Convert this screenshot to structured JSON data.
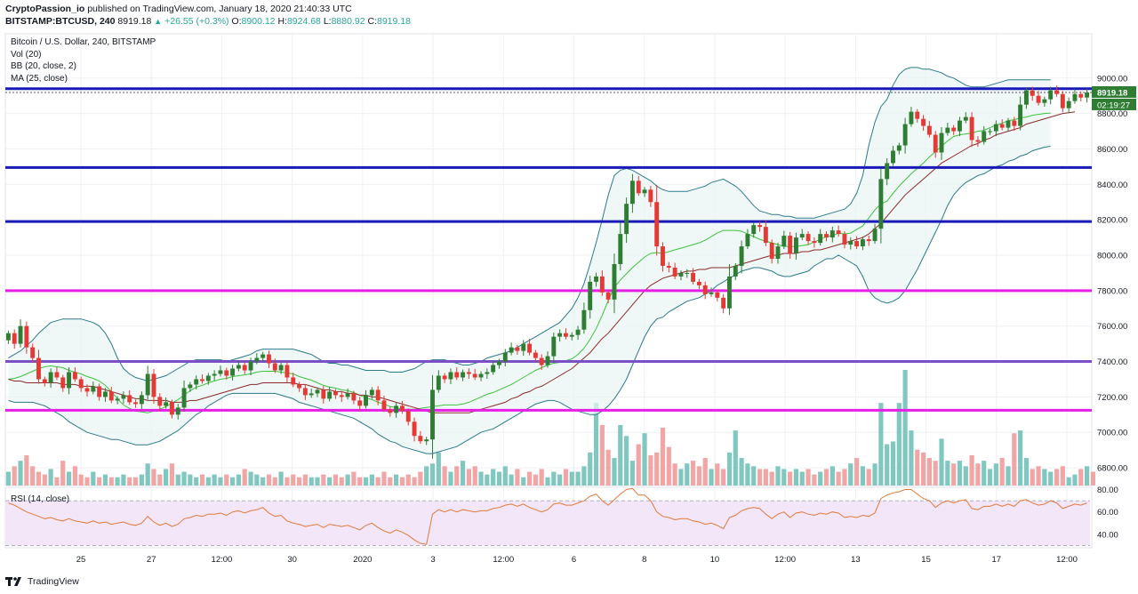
{
  "header": {
    "author": "CryptoPassion_io",
    "published_text": "published on TradingView.com, January 18, 2020 21:40:33 UTC",
    "symbol": "BITSTAMP:BTCUSD, 240",
    "last": "8919.18",
    "change": "+26.55 (+0.3%)",
    "O_label": "O:",
    "O": "8900.12",
    "H_label": "H:",
    "H": "8924.68",
    "L_label": "L:",
    "L": "8880.92",
    "C_label": "C:",
    "C": "8919.18"
  },
  "footer": {
    "brand": "TradingView"
  },
  "chart_data": {
    "type": "candlestick",
    "title": "Bitcoin / U.S. Dollar, 240, BITSTAMP",
    "indicators": [
      "Vol (20)",
      "BB (20, close, 2)",
      "MA (25, close)"
    ],
    "rsi_label": "RSI (14, close)",
    "price_axis": {
      "ylim": [
        6700,
        9250
      ],
      "ticks": [
        6800,
        7000,
        7200,
        7400,
        7600,
        7800,
        8000,
        8200,
        8400,
        8600,
        8800,
        9000
      ]
    },
    "rsi_axis": {
      "ylim": [
        28,
        82
      ],
      "ticks": [
        40,
        60,
        80
      ],
      "bands": [
        30,
        70
      ]
    },
    "x_tick_labels": [
      "25",
      "27",
      "12:00",
      "30",
      "2020",
      "3",
      "12:00",
      "6",
      "8",
      "10",
      "12:00",
      "13",
      "15",
      "17",
      "12:00"
    ],
    "last_price_label": "8919.18",
    "countdown_label": "02:19:27",
    "horizontal_levels": [
      {
        "price": 8940,
        "color": "#1a1ab8",
        "style": "solid"
      },
      {
        "price": 8919,
        "color": "#555555",
        "style": "dotted"
      },
      {
        "price": 8495,
        "color": "#1a1ab8",
        "style": "solid"
      },
      {
        "price": 8190,
        "color": "#1a1ab8",
        "style": "solid"
      },
      {
        "price": 7800,
        "color": "#e61ee6",
        "style": "solid"
      },
      {
        "price": 7400,
        "color": "#7a4fc7",
        "style": "solid"
      },
      {
        "price": 7125,
        "color": "#e61ee6",
        "style": "solid"
      }
    ],
    "colors": {
      "up": "#2e7d32",
      "down": "#e53935",
      "vol_up": "#80c7c0",
      "vol_down": "#f2a5a5",
      "bb": "#2b7a8a",
      "ma": "#8b2a2a",
      "basis": "#3cc33c",
      "rsi": "#e07a3a",
      "rsi_band": "#f3e6f9"
    },
    "closes": [
      7560,
      7500,
      7600,
      7480,
      7420,
      7300,
      7280,
      7340,
      7310,
      7250,
      7340,
      7300,
      7250,
      7230,
      7260,
      7200,
      7230,
      7180,
      7190,
      7210,
      7170,
      7160,
      7210,
      7330,
      7200,
      7150,
      7170,
      7100,
      7140,
      7250,
      7270,
      7300,
      7290,
      7320,
      7330,
      7350,
      7320,
      7360,
      7380,
      7350,
      7400,
      7420,
      7440,
      7390,
      7350,
      7380,
      7310,
      7270,
      7250,
      7210,
      7220,
      7240,
      7190,
      7230,
      7210,
      7200,
      7220,
      7180,
      7150,
      7210,
      7240,
      7180,
      7130,
      7110,
      7150,
      7120,
      7060,
      6980,
      6950,
      6960,
      7240,
      7320,
      7300,
      7340,
      7310,
      7340,
      7330,
      7310,
      7330,
      7340,
      7380,
      7400,
      7450,
      7480,
      7460,
      7500,
      7450,
      7420,
      7380,
      7430,
      7540,
      7560,
      7540,
      7550,
      7580,
      7690,
      7850,
      7880,
      7790,
      7750,
      7950,
      8120,
      8290,
      8420,
      8350,
      8370,
      8300,
      8050,
      7940,
      7930,
      7880,
      7900,
      7900,
      7850,
      7830,
      7780,
      7790,
      7760,
      7700,
      7880,
      7940,
      8050,
      8120,
      8170,
      8160,
      8070,
      7980,
      8050,
      8110,
      8010,
      8100,
      8120,
      8080,
      8070,
      8120,
      8100,
      8140,
      8120,
      8060,
      8080,
      8050,
      8090,
      8080,
      8150,
      8430,
      8520,
      8590,
      8620,
      8740,
      8810,
      8770,
      8730,
      8680,
      8580,
      8690,
      8720,
      8700,
      8760,
      8780,
      8650,
      8640,
      8700,
      8700,
      8740,
      8720,
      8760,
      8730,
      8850,
      8930,
      8900,
      8860,
      8880,
      8930,
      8910,
      8830,
      8870,
      8910,
      8890,
      8919
    ],
    "bb_upper": [
      7420,
      7440,
      7460,
      7490,
      7520,
      7560,
      7590,
      7620,
      7630,
      7640,
      7640,
      7640,
      7640,
      7630,
      7620,
      7600,
      7560,
      7500,
      7420,
      7360,
      7330,
      7310,
      7300,
      7290,
      7300,
      7310,
      7320,
      7340,
      7360,
      7380,
      7400,
      7410,
      7410,
      7410,
      7410,
      7410,
      7400,
      7410,
      7420,
      7430,
      7440,
      7460,
      7470,
      7470,
      7470,
      7470,
      7470,
      7470,
      7460,
      7450,
      7440,
      7420,
      7400,
      7390,
      7390,
      7380,
      7380,
      7370,
      7360,
      7350,
      7350,
      7350,
      7350,
      7340,
      7340,
      7340,
      7350,
      7360,
      7380,
      7400,
      7410,
      7410,
      7410,
      7400,
      7390,
      7380,
      7380,
      7390,
      7400,
      7420,
      7430,
      7440,
      7450,
      7460,
      7480,
      7500,
      7520,
      7540,
      7560,
      7580,
      7600,
      7620,
      7660,
      7700,
      7760,
      7840,
      7950,
      8070,
      8200,
      8340,
      8450,
      8480,
      8490,
      8480,
      8460,
      8440,
      8420,
      8390,
      8370,
      8360,
      8360,
      8360,
      8360,
      8370,
      8380,
      8390,
      8410,
      8420,
      8430,
      8410,
      8390,
      8360,
      8320,
      8280,
      8250,
      8240,
      8230,
      8230,
      8220,
      8220,
      8210,
      8210,
      8210,
      8210,
      8220,
      8230,
      8240,
      8250,
      8260,
      8290,
      8350,
      8450,
      8620,
      8750,
      8840,
      8880,
      8960,
      9020,
      9050,
      9060,
      9060,
      9050,
      9050,
      9040,
      9030,
      9010,
      9000,
      8980,
      8960,
      8950,
      8950,
      8950,
      8960,
      8970,
      8980,
      8990,
      8990,
      8990,
      8990,
      8990,
      8990,
      8990,
      8990
    ],
    "bb_lower": [
      7180,
      7170,
      7170,
      7170,
      7170,
      7160,
      7150,
      7130,
      7110,
      7090,
      7060,
      7040,
      7020,
      7000,
      6990,
      6980,
      6970,
      6960,
      6960,
      6950,
      6940,
      6930,
      6930,
      6930,
      6940,
      6950,
      6970,
      6990,
      7010,
      7040,
      7070,
      7100,
      7120,
      7150,
      7170,
      7190,
      7210,
      7220,
      7220,
      7220,
      7220,
      7220,
      7220,
      7220,
      7220,
      7210,
      7200,
      7190,
      7170,
      7160,
      7150,
      7140,
      7130,
      7120,
      7110,
      7100,
      7090,
      7080,
      7060,
      7040,
      7020,
      6990,
      6970,
      6950,
      6940,
      6920,
      6910,
      6900,
      6890,
      6880,
      6880,
      6890,
      6900,
      6910,
      6920,
      6940,
      6960,
      6980,
      7000,
      7010,
      7020,
      7040,
      7060,
      7080,
      7100,
      7120,
      7140,
      7160,
      7170,
      7180,
      7180,
      7170,
      7150,
      7130,
      7120,
      7110,
      7100,
      7100,
      7120,
      7150,
      7190,
      7240,
      7300,
      7380,
      7460,
      7540,
      7600,
      7640,
      7650,
      7680,
      7700,
      7720,
      7740,
      7750,
      7760,
      7780,
      7800,
      7830,
      7850,
      7870,
      7890,
      7910,
      7920,
      7930,
      7930,
      7920,
      7910,
      7890,
      7880,
      7880,
      7890,
      7900,
      7910,
      7940,
      7960,
      7980,
      7980,
      8000,
      7980,
      7960,
      7940,
      7880,
      7800,
      7760,
      7740,
      7730,
      7740,
      7760,
      7800,
      7860,
      7920,
      7990,
      8060,
      8130,
      8200,
      8280,
      8340,
      8380,
      8410,
      8430,
      8450,
      8460,
      8480,
      8500,
      8510,
      8530,
      8540,
      8560,
      8570,
      8590,
      8600,
      8610,
      8615
    ],
    "ma25": [
      7300,
      7290,
      7290,
      7280,
      7280,
      7280,
      7280,
      7280,
      7280,
      7270,
      7270,
      7270,
      7260,
      7260,
      7260,
      7250,
      7240,
      7230,
      7220,
      7210,
      7200,
      7190,
      7190,
      7180,
      7180,
      7180,
      7180,
      7170,
      7170,
      7170,
      7180,
      7180,
      7190,
      7200,
      7210,
      7220,
      7230,
      7240,
      7250,
      7260,
      7270,
      7270,
      7280,
      7280,
      7280,
      7280,
      7280,
      7280,
      7270,
      7270,
      7260,
      7250,
      7240,
      7240,
      7230,
      7230,
      7220,
      7220,
      7210,
      7210,
      7200,
      7200,
      7190,
      7180,
      7170,
      7160,
      7150,
      7140,
      7130,
      7120,
      7110,
      7110,
      7110,
      7110,
      7110,
      7110,
      7110,
      7120,
      7130,
      7140,
      7150,
      7160,
      7170,
      7190,
      7200,
      7220,
      7230,
      7250,
      7260,
      7280,
      7300,
      7320,
      7340,
      7360,
      7390,
      7420,
      7450,
      7490,
      7530,
      7560,
      7600,
      7640,
      7680,
      7720,
      7760,
      7800,
      7830,
      7850,
      7870,
      7880,
      7890,
      7900,
      7910,
      7910,
      7920,
      7920,
      7930,
      7930,
      7930,
      7930,
      7940,
      7950,
      7960,
      7970,
      7980,
      7990,
      8000,
      8000,
      8010,
      8010,
      8010,
      8020,
      8020,
      8030,
      8030,
      8040,
      8050,
      8060,
      8070,
      8080,
      8090,
      8100,
      8120,
      8150,
      8180,
      8220,
      8260,
      8300,
      8340,
      8370,
      8400,
      8430,
      8460,
      8490,
      8520,
      8540,
      8560,
      8580,
      8600,
      8620,
      8630,
      8650,
      8660,
      8680,
      8690,
      8700,
      8710,
      8720,
      8740,
      8750,
      8760,
      8770,
      8780,
      8790,
      8800,
      8805,
      8810
    ],
    "volume": [
      5,
      7,
      9,
      11,
      7,
      5,
      4,
      6,
      3,
      9,
      5,
      7,
      4,
      3,
      5,
      3,
      4,
      3,
      3,
      4,
      3,
      3,
      4,
      8,
      6,
      4,
      6,
      8,
      4,
      5,
      4,
      3,
      4,
      3,
      4,
      3,
      4,
      3,
      4,
      6,
      5,
      4,
      3,
      4,
      3,
      5,
      3,
      4,
      3,
      4,
      3,
      3,
      4,
      3,
      4,
      3,
      4,
      5,
      3,
      3,
      4,
      3,
      5,
      3,
      4,
      3,
      4,
      3,
      5,
      7,
      8,
      12,
      7,
      5,
      7,
      9,
      6,
      7,
      5,
      4,
      6,
      5,
      7,
      4,
      6,
      3,
      5,
      4,
      6,
      3,
      5,
      4,
      6,
      5,
      5,
      7,
      12,
      30,
      22,
      13,
      10,
      22,
      18,
      9,
      15,
      19,
      11,
      12,
      21,
      14,
      8,
      6,
      8,
      9,
      7,
      10,
      6,
      8,
      6,
      12,
      20,
      10,
      8,
      7,
      6,
      6,
      5,
      7,
      6,
      5,
      6,
      5,
      6,
      4,
      5,
      6,
      7,
      5,
      6,
      8,
      10,
      7,
      6,
      8,
      30,
      15,
      16,
      30,
      42,
      20,
      13,
      12,
      10,
      9,
      17,
      9,
      8,
      9,
      7,
      11,
      8,
      9,
      6,
      8,
      10,
      7,
      19,
      20,
      10,
      6,
      7,
      6,
      5,
      6,
      7,
      3,
      4,
      6,
      7,
      5
    ],
    "rsi": [
      68,
      66,
      63,
      60,
      58,
      56,
      54,
      55,
      53,
      52,
      54,
      52,
      51,
      50,
      52,
      50,
      51,
      49,
      50,
      51,
      49,
      48,
      50,
      56,
      51,
      48,
      50,
      47,
      49,
      54,
      55,
      57,
      56,
      58,
      58,
      59,
      57,
      60,
      61,
      59,
      61,
      62,
      64,
      59,
      56,
      57,
      52,
      50,
      49,
      47,
      48,
      49,
      46,
      49,
      48,
      47,
      48,
      46,
      44,
      48,
      50,
      46,
      43,
      41,
      44,
      42,
      39,
      35,
      32,
      31,
      58,
      62,
      60,
      62,
      60,
      62,
      61,
      60,
      61,
      61,
      63,
      64,
      66,
      67,
      65,
      67,
      64,
      62,
      60,
      62,
      67,
      68,
      66,
      66,
      68,
      70,
      74,
      76,
      70,
      66,
      71,
      76,
      80,
      81,
      75,
      75,
      70,
      60,
      56,
      55,
      53,
      54,
      54,
      52,
      51,
      49,
      50,
      48,
      45,
      55,
      57,
      61,
      63,
      64,
      63,
      58,
      54,
      58,
      60,
      55,
      59,
      60,
      58,
      57,
      59,
      58,
      60,
      59,
      55,
      56,
      55,
      57,
      56,
      59,
      72,
      75,
      77,
      78,
      80,
      80,
      76,
      72,
      70,
      64,
      68,
      70,
      68,
      70,
      71,
      63,
      62,
      65,
      65,
      67,
      65,
      67,
      65,
      70,
      71,
      68,
      66,
      67,
      70,
      68,
      63,
      65,
      67,
      66,
      68
    ]
  }
}
